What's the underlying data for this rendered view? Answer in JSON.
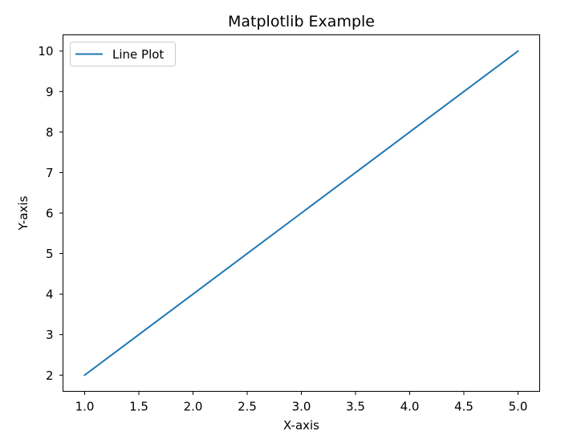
{
  "chart_data": {
    "type": "line",
    "title": "Matplotlib Example",
    "xlabel": "X-axis",
    "ylabel": "Y-axis",
    "xlim": [
      0.8,
      5.2
    ],
    "ylim": [
      1.6,
      10.4
    ],
    "xticks": [
      "1.0",
      "1.5",
      "2.0",
      "2.5",
      "3.0",
      "3.5",
      "4.0",
      "4.5",
      "5.0"
    ],
    "yticks": [
      "2",
      "3",
      "4",
      "5",
      "6",
      "7",
      "8",
      "9",
      "10"
    ],
    "grid": false,
    "legend": {
      "position": "upper-left",
      "entries": [
        "Line Plot"
      ]
    },
    "series": [
      {
        "name": "Line Plot",
        "color": "#1f77b4",
        "x": [
          1,
          2,
          3,
          4,
          5
        ],
        "y": [
          2,
          4,
          6,
          8,
          10
        ]
      }
    ]
  }
}
